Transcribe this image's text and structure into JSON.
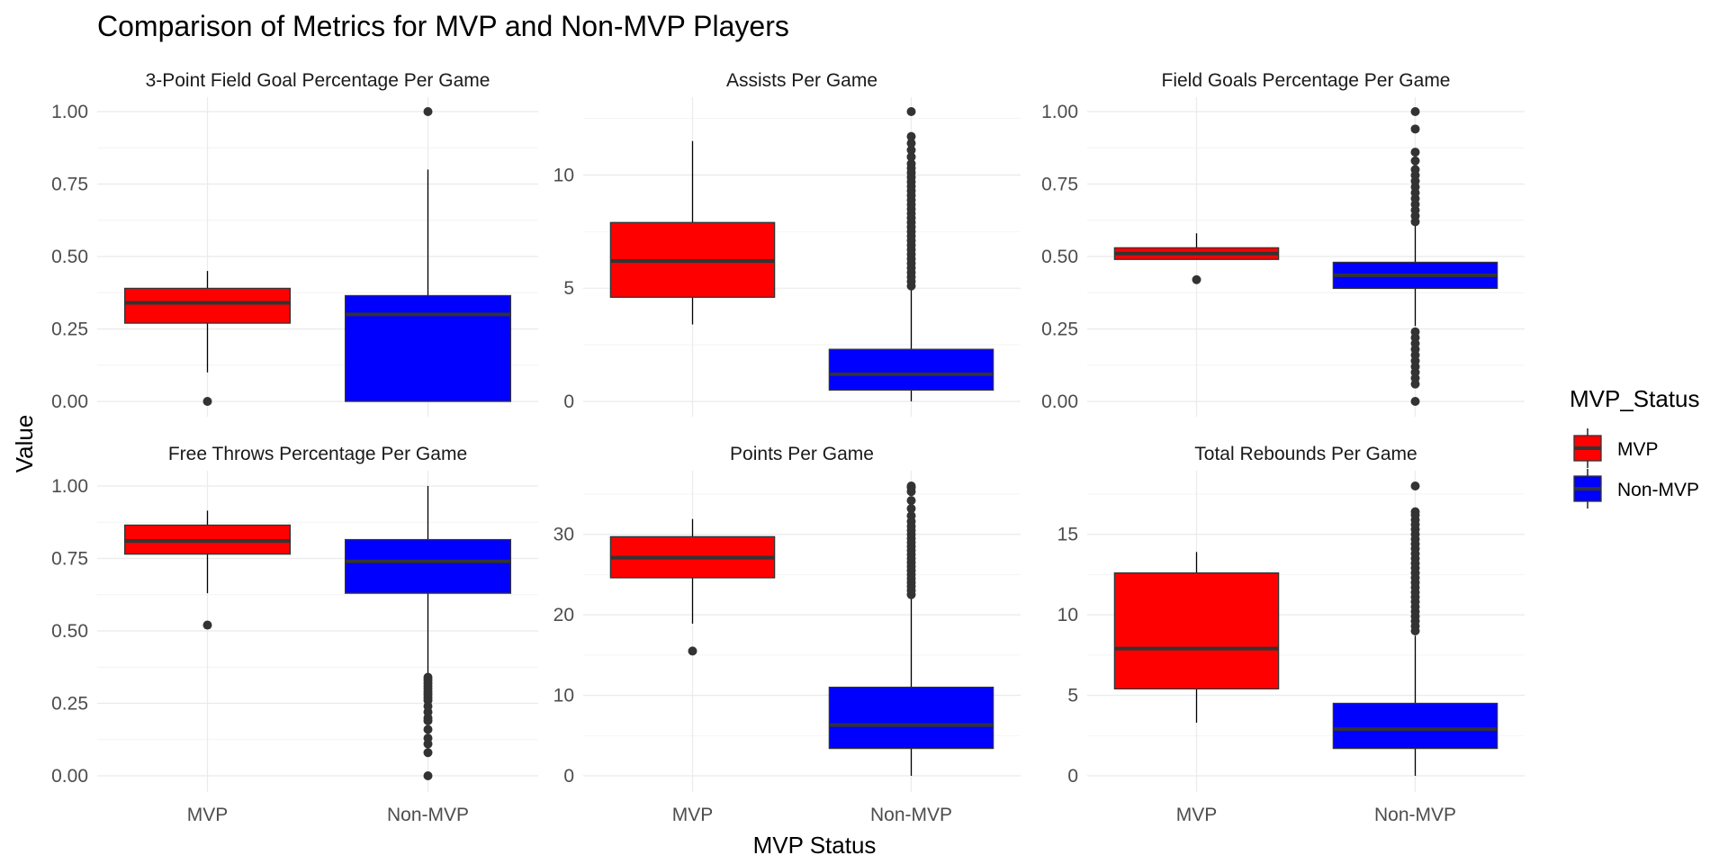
{
  "colors": {
    "mvp": "#ff0000",
    "non_mvp": "#0000ff"
  },
  "chart_data": {
    "type": "boxplot",
    "title": "Comparison of Metrics for MVP and Non-MVP Players",
    "xlabel": "MVP Status",
    "ylabel": "Value",
    "categories": [
      "MVP",
      "Non-MVP"
    ],
    "legend": {
      "title": "MVP_Status",
      "position": "right",
      "entries": [
        {
          "label": "MVP",
          "color": "#ff0000"
        },
        {
          "label": "Non-MVP",
          "color": "#0000ff"
        }
      ]
    },
    "grid": true,
    "facets": [
      {
        "title": "3-Point Field Goal Percentage Per Game",
        "ylim": [
          0,
          1.0
        ],
        "yticks": [
          0,
          0.25,
          0.5,
          0.75,
          1.0
        ],
        "ytick_labels": [
          "0.00",
          "0.25",
          "0.50",
          "0.75",
          "1.00"
        ],
        "boxes": [
          {
            "group": "MVP",
            "whisker_low": 0.1,
            "q1": 0.27,
            "median": 0.34,
            "q3": 0.39,
            "whisker_high": 0.45,
            "outliers": [
              0.0
            ]
          },
          {
            "group": "Non-MVP",
            "whisker_low": 0.0,
            "q1": 0.0,
            "median": 0.3,
            "q3": 0.365,
            "whisker_high": 0.8,
            "outliers": [
              1.0
            ]
          }
        ]
      },
      {
        "title": "Assists Per Game",
        "ylim": [
          0,
          12.8
        ],
        "yticks": [
          0,
          5,
          10
        ],
        "ytick_labels": [
          "0",
          "5",
          "10"
        ],
        "boxes": [
          {
            "group": "MVP",
            "whisker_low": 3.4,
            "q1": 4.6,
            "median": 6.2,
            "q3": 7.9,
            "whisker_high": 11.5,
            "outliers": []
          },
          {
            "group": "Non-MVP",
            "whisker_low": 0.0,
            "q1": 0.5,
            "median": 1.2,
            "q3": 2.3,
            "whisker_high": 5.0,
            "outliers": [
              5.1,
              5.3,
              5.5,
              5.7,
              5.9,
              6.1,
              6.3,
              6.5,
              6.7,
              6.9,
              7.1,
              7.3,
              7.5,
              7.7,
              7.9,
              8.1,
              8.3,
              8.5,
              8.7,
              8.9,
              9.1,
              9.3,
              9.5,
              9.7,
              9.9,
              10.1,
              10.3,
              10.5,
              10.8,
              11.1,
              11.4,
              11.7,
              12.8
            ]
          }
        ]
      },
      {
        "title": "Field Goals Percentage Per Game",
        "ylim": [
          0,
          1.0
        ],
        "yticks": [
          0,
          0.25,
          0.5,
          0.75,
          1.0
        ],
        "ytick_labels": [
          "0.00",
          "0.25",
          "0.50",
          "0.75",
          "1.00"
        ],
        "boxes": [
          {
            "group": "MVP",
            "whisker_low": 0.49,
            "q1": 0.49,
            "median": 0.51,
            "q3": 0.53,
            "whisker_high": 0.58,
            "outliers": [
              0.42
            ]
          },
          {
            "group": "Non-MVP",
            "whisker_low": 0.26,
            "q1": 0.39,
            "median": 0.435,
            "q3": 0.48,
            "whisker_high": 0.61,
            "outliers": [
              0.0,
              0.06,
              0.08,
              0.1,
              0.12,
              0.14,
              0.16,
              0.18,
              0.2,
              0.22,
              0.24,
              0.62,
              0.64,
              0.66,
              0.68,
              0.7,
              0.72,
              0.74,
              0.76,
              0.78,
              0.8,
              0.83,
              0.86,
              0.94,
              1.0
            ]
          }
        ]
      },
      {
        "title": "Free Throws Percentage Per Game",
        "ylim": [
          0,
          1.0
        ],
        "yticks": [
          0,
          0.25,
          0.5,
          0.75,
          1.0
        ],
        "ytick_labels": [
          "0.00",
          "0.25",
          "0.50",
          "0.75",
          "1.00"
        ],
        "boxes": [
          {
            "group": "MVP",
            "whisker_low": 0.63,
            "q1": 0.765,
            "median": 0.81,
            "q3": 0.865,
            "whisker_high": 0.915,
            "outliers": [
              0.52
            ]
          },
          {
            "group": "Non-MVP",
            "whisker_low": 0.35,
            "q1": 0.63,
            "median": 0.74,
            "q3": 0.815,
            "whisker_high": 1.0,
            "outliers": [
              0.0,
              0.08,
              0.11,
              0.13,
              0.16,
              0.19,
              0.2,
              0.22,
              0.24,
              0.26,
              0.27,
              0.28,
              0.29,
              0.3,
              0.31,
              0.32,
              0.33,
              0.34
            ]
          }
        ]
      },
      {
        "title": "Points Per Game",
        "ylim": [
          0,
          36.0
        ],
        "yticks": [
          0,
          10,
          20,
          30
        ],
        "ytick_labels": [
          "0",
          "10",
          "20",
          "30"
        ],
        "boxes": [
          {
            "group": "MVP",
            "whisker_low": 18.9,
            "q1": 24.6,
            "median": 27.1,
            "q3": 29.7,
            "whisker_high": 31.9,
            "outliers": [
              15.5
            ]
          },
          {
            "group": "Non-MVP",
            "whisker_low": 0.0,
            "q1": 3.4,
            "median": 6.3,
            "q3": 11.0,
            "whisker_high": 22.2,
            "outliers": [
              22.5,
              23.0,
              23.5,
              24.0,
              24.5,
              25.0,
              25.5,
              26.0,
              26.5,
              27.0,
              27.5,
              28.0,
              28.5,
              29.0,
              29.5,
              30.0,
              30.5,
              31.0,
              31.6,
              32.3,
              33.2,
              34.2,
              35.3,
              35.8,
              36.0
            ]
          }
        ]
      },
      {
        "title": "Total Rebounds Per Game",
        "ylim": [
          0,
          18.0
        ],
        "yticks": [
          0,
          5,
          10,
          15
        ],
        "ytick_labels": [
          "0",
          "5",
          "10",
          "15"
        ],
        "boxes": [
          {
            "group": "MVP",
            "whisker_low": 3.3,
            "q1": 5.4,
            "median": 7.9,
            "q3": 12.6,
            "whisker_high": 13.9,
            "outliers": []
          },
          {
            "group": "Non-MVP",
            "whisker_low": 0.0,
            "q1": 1.7,
            "median": 2.9,
            "q3": 4.5,
            "whisker_high": 8.7,
            "outliers": [
              9.0,
              9.3,
              9.6,
              9.9,
              10.2,
              10.5,
              10.8,
              11.1,
              11.4,
              11.7,
              12.0,
              12.3,
              12.6,
              12.9,
              13.2,
              13.5,
              13.8,
              14.1,
              14.4,
              14.7,
              15.0,
              15.3,
              15.6,
              15.9,
              16.2,
              16.4,
              18.0
            ]
          }
        ]
      }
    ]
  }
}
